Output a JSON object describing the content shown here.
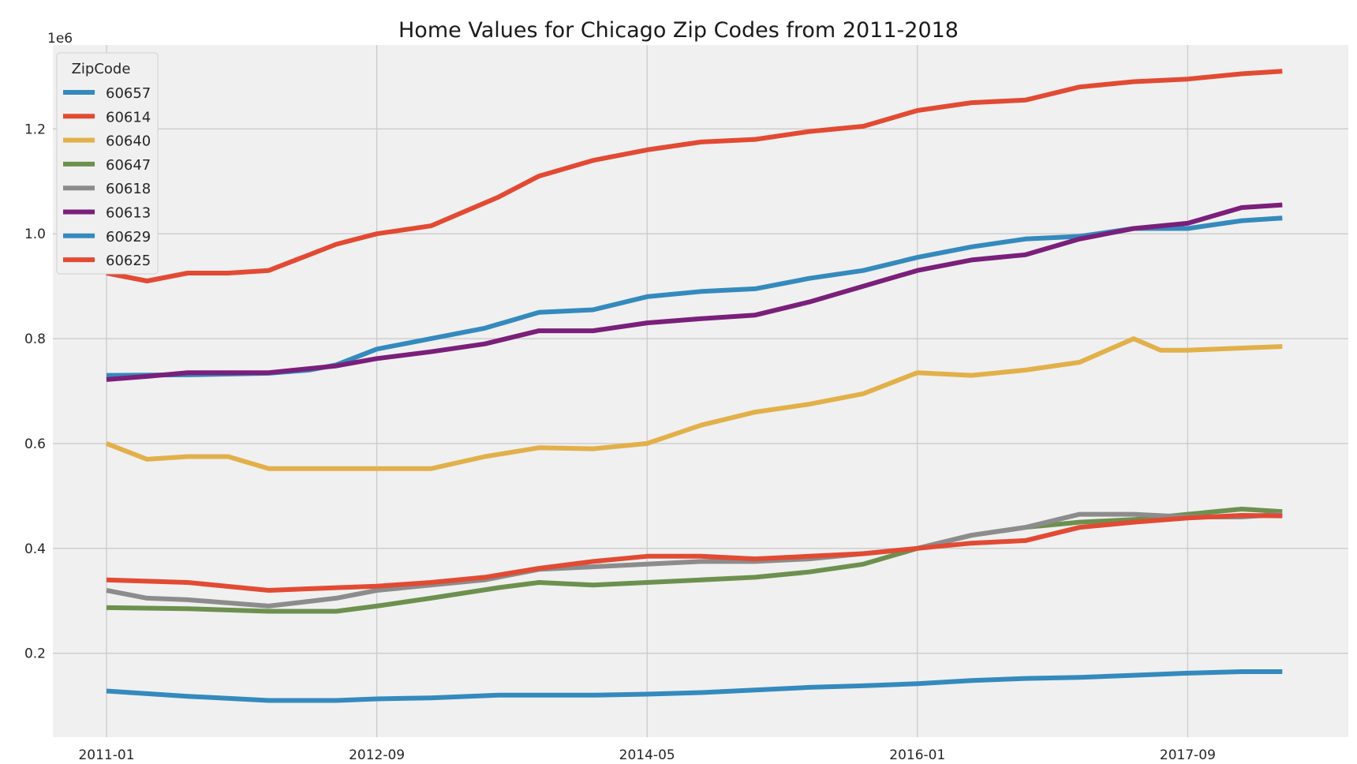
{
  "chart_data": {
    "type": "line",
    "title": "Home Values for Chicago Zip Codes from 2011-2018",
    "xlabel": "",
    "ylabel": "",
    "y_offset_label": "1e6",
    "ylim": [
      0.04,
      1.36
    ],
    "y_ticks": [
      0.2,
      0.4,
      0.6,
      0.8,
      1.0,
      1.2
    ],
    "y_tick_labels": [
      "0.2",
      "0.4",
      "0.6",
      "0.8",
      "1.0",
      "1.2"
    ],
    "x_ticks": [
      "2011-01",
      "2012-09",
      "2014-05",
      "2016-01",
      "2017-09"
    ],
    "x_tick_labels": [
      "2011-01",
      "2012-09",
      "2014-05",
      "2016-01",
      "2017-09"
    ],
    "grid": true,
    "legend": {
      "title": "ZipCode",
      "placement": "top-left"
    },
    "series": [
      {
        "name": "60657",
        "color": "#348ABD",
        "points": [
          [
            "2011-01",
            0.73
          ],
          [
            "2011-07",
            0.731
          ],
          [
            "2012-01",
            0.734
          ],
          [
            "2012-04",
            0.74
          ],
          [
            "2012-06",
            0.75
          ],
          [
            "2012-09",
            0.78
          ],
          [
            "2013-01",
            0.8
          ],
          [
            "2013-05",
            0.82
          ],
          [
            "2013-09",
            0.85
          ],
          [
            "2014-01",
            0.855
          ],
          [
            "2014-05",
            0.88
          ],
          [
            "2014-09",
            0.89
          ],
          [
            "2015-01",
            0.895
          ],
          [
            "2015-05",
            0.915
          ],
          [
            "2015-09",
            0.93
          ],
          [
            "2016-01",
            0.955
          ],
          [
            "2016-05",
            0.975
          ],
          [
            "2016-09",
            0.99
          ],
          [
            "2017-01",
            0.995
          ],
          [
            "2017-05",
            1.01
          ],
          [
            "2017-09",
            1.01
          ],
          [
            "2018-01",
            1.025
          ],
          [
            "2018-04",
            1.03
          ]
        ]
      },
      {
        "name": "60614",
        "color": "#E24A33",
        "points": [
          [
            "2011-01",
            0.925
          ],
          [
            "2011-04",
            0.91
          ],
          [
            "2011-07",
            0.925
          ],
          [
            "2011-10",
            0.925
          ],
          [
            "2012-01",
            0.93
          ],
          [
            "2012-06",
            0.98
          ],
          [
            "2012-09",
            1.0
          ],
          [
            "2013-01",
            1.015
          ],
          [
            "2013-06",
            1.07
          ],
          [
            "2013-09",
            1.11
          ],
          [
            "2014-01",
            1.14
          ],
          [
            "2014-05",
            1.16
          ],
          [
            "2014-09",
            1.175
          ],
          [
            "2015-01",
            1.18
          ],
          [
            "2015-05",
            1.195
          ],
          [
            "2015-09",
            1.205
          ],
          [
            "2016-01",
            1.235
          ],
          [
            "2016-05",
            1.25
          ],
          [
            "2016-09",
            1.255
          ],
          [
            "2017-01",
            1.28
          ],
          [
            "2017-05",
            1.29
          ],
          [
            "2017-09",
            1.295
          ],
          [
            "2018-01",
            1.305
          ],
          [
            "2018-04",
            1.31
          ]
        ]
      },
      {
        "name": "60640",
        "color": "#E2B04A",
        "points": [
          [
            "2011-01",
            0.6
          ],
          [
            "2011-04",
            0.57
          ],
          [
            "2011-07",
            0.575
          ],
          [
            "2011-10",
            0.575
          ],
          [
            "2012-01",
            0.552
          ],
          [
            "2012-04",
            0.552
          ],
          [
            "2012-09",
            0.552
          ],
          [
            "2013-01",
            0.552
          ],
          [
            "2013-05",
            0.575
          ],
          [
            "2013-09",
            0.592
          ],
          [
            "2014-01",
            0.59
          ],
          [
            "2014-05",
            0.6
          ],
          [
            "2014-09",
            0.635
          ],
          [
            "2015-01",
            0.66
          ],
          [
            "2015-05",
            0.675
          ],
          [
            "2015-09",
            0.695
          ],
          [
            "2016-01",
            0.735
          ],
          [
            "2016-05",
            0.73
          ],
          [
            "2016-09",
            0.74
          ],
          [
            "2017-01",
            0.755
          ],
          [
            "2017-05",
            0.8
          ],
          [
            "2017-07",
            0.778
          ],
          [
            "2017-09",
            0.778
          ],
          [
            "2018-01",
            0.782
          ],
          [
            "2018-04",
            0.785
          ]
        ]
      },
      {
        "name": "60647",
        "color": "#6D904F",
        "points": [
          [
            "2011-01",
            0.287
          ],
          [
            "2011-07",
            0.285
          ],
          [
            "2012-01",
            0.28
          ],
          [
            "2012-06",
            0.28
          ],
          [
            "2012-09",
            0.29
          ],
          [
            "2013-01",
            0.305
          ],
          [
            "2013-06",
            0.325
          ],
          [
            "2013-09",
            0.335
          ],
          [
            "2014-01",
            0.33
          ],
          [
            "2014-05",
            0.335
          ],
          [
            "2014-09",
            0.34
          ],
          [
            "2015-01",
            0.345
          ],
          [
            "2015-05",
            0.355
          ],
          [
            "2015-09",
            0.37
          ],
          [
            "2016-01",
            0.4
          ],
          [
            "2016-05",
            0.425
          ],
          [
            "2016-09",
            0.44
          ],
          [
            "2017-01",
            0.45
          ],
          [
            "2017-05",
            0.455
          ],
          [
            "2017-09",
            0.465
          ],
          [
            "2018-01",
            0.475
          ],
          [
            "2018-04",
            0.47
          ]
        ]
      },
      {
        "name": "60618",
        "color": "#8C8C8C",
        "points": [
          [
            "2011-01",
            0.32
          ],
          [
            "2011-04",
            0.305
          ],
          [
            "2011-07",
            0.302
          ],
          [
            "2012-01",
            0.29
          ],
          [
            "2012-06",
            0.305
          ],
          [
            "2012-09",
            0.32
          ],
          [
            "2013-01",
            0.33
          ],
          [
            "2013-05",
            0.34
          ],
          [
            "2013-09",
            0.36
          ],
          [
            "2014-01",
            0.365
          ],
          [
            "2014-05",
            0.37
          ],
          [
            "2014-09",
            0.375
          ],
          [
            "2015-01",
            0.375
          ],
          [
            "2015-05",
            0.38
          ],
          [
            "2015-09",
            0.39
          ],
          [
            "2016-01",
            0.4
          ],
          [
            "2016-05",
            0.425
          ],
          [
            "2016-09",
            0.44
          ],
          [
            "2017-01",
            0.465
          ],
          [
            "2017-05",
            0.465
          ],
          [
            "2017-09",
            0.46
          ],
          [
            "2018-01",
            0.46
          ],
          [
            "2018-04",
            0.465
          ]
        ]
      },
      {
        "name": "60613",
        "color": "#7A1F7A",
        "points": [
          [
            "2011-01",
            0.722
          ],
          [
            "2011-04",
            0.728
          ],
          [
            "2011-07",
            0.735
          ],
          [
            "2012-01",
            0.735
          ],
          [
            "2012-06",
            0.748
          ],
          [
            "2012-09",
            0.762
          ],
          [
            "2013-01",
            0.775
          ],
          [
            "2013-05",
            0.79
          ],
          [
            "2013-09",
            0.815
          ],
          [
            "2014-01",
            0.815
          ],
          [
            "2014-05",
            0.83
          ],
          [
            "2014-09",
            0.838
          ],
          [
            "2015-01",
            0.845
          ],
          [
            "2015-05",
            0.87
          ],
          [
            "2015-09",
            0.9
          ],
          [
            "2016-01",
            0.93
          ],
          [
            "2016-05",
            0.95
          ],
          [
            "2016-09",
            0.96
          ],
          [
            "2017-01",
            0.99
          ],
          [
            "2017-05",
            1.01
          ],
          [
            "2017-09",
            1.02
          ],
          [
            "2018-01",
            1.05
          ],
          [
            "2018-04",
            1.055
          ]
        ]
      },
      {
        "name": "60629",
        "color": "#348ABD",
        "points": [
          [
            "2011-01",
            0.128
          ],
          [
            "2011-07",
            0.118
          ],
          [
            "2012-01",
            0.11
          ],
          [
            "2012-06",
            0.11
          ],
          [
            "2012-09",
            0.113
          ],
          [
            "2013-01",
            0.115
          ],
          [
            "2013-06",
            0.12
          ],
          [
            "2014-01",
            0.12
          ],
          [
            "2014-05",
            0.122
          ],
          [
            "2014-09",
            0.125
          ],
          [
            "2015-01",
            0.13
          ],
          [
            "2015-05",
            0.135
          ],
          [
            "2015-09",
            0.138
          ],
          [
            "2016-01",
            0.142
          ],
          [
            "2016-05",
            0.148
          ],
          [
            "2016-09",
            0.152
          ],
          [
            "2017-01",
            0.154
          ],
          [
            "2017-05",
            0.158
          ],
          [
            "2017-09",
            0.162
          ],
          [
            "2018-01",
            0.165
          ],
          [
            "2018-04",
            0.165
          ]
        ]
      },
      {
        "name": "60625",
        "color": "#E24A33",
        "points": [
          [
            "2011-01",
            0.34
          ],
          [
            "2011-07",
            0.335
          ],
          [
            "2012-01",
            0.32
          ],
          [
            "2012-06",
            0.325
          ],
          [
            "2012-09",
            0.328
          ],
          [
            "2013-01",
            0.335
          ],
          [
            "2013-05",
            0.345
          ],
          [
            "2013-09",
            0.362
          ],
          [
            "2014-01",
            0.375
          ],
          [
            "2014-05",
            0.385
          ],
          [
            "2014-09",
            0.385
          ],
          [
            "2015-01",
            0.38
          ],
          [
            "2015-05",
            0.385
          ],
          [
            "2015-09",
            0.39
          ],
          [
            "2016-01",
            0.4
          ],
          [
            "2016-05",
            0.41
          ],
          [
            "2016-09",
            0.415
          ],
          [
            "2017-01",
            0.44
          ],
          [
            "2017-05",
            0.45
          ],
          [
            "2017-09",
            0.458
          ],
          [
            "2018-01",
            0.463
          ],
          [
            "2018-04",
            0.462
          ]
        ]
      }
    ]
  }
}
